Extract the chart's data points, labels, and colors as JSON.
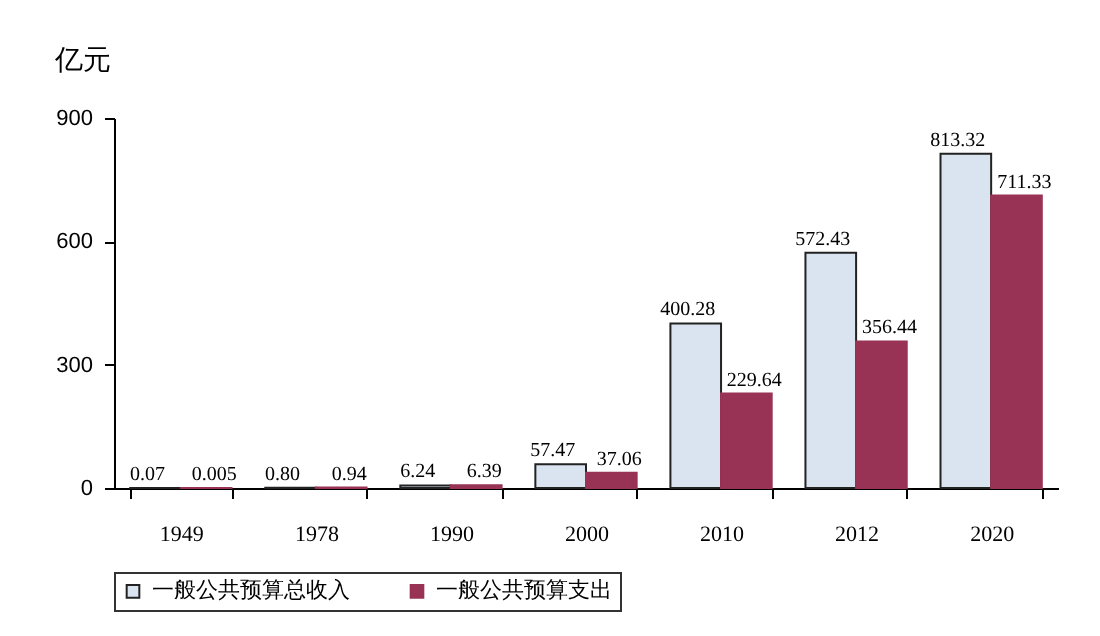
{
  "chart_data": {
    "type": "bar",
    "ylabel": "亿元",
    "categories": [
      "1949",
      "1978",
      "1990",
      "2000",
      "2010",
      "2012",
      "2020"
    ],
    "series": [
      {
        "name": "一般公共预算总收入",
        "color": "#dae3f0",
        "values": [
          0.07,
          0.8,
          6.24,
          57.47,
          400.28,
          572.43,
          813.32
        ],
        "value_labels": [
          "0.07",
          "0.80",
          "6.24",
          "57.47",
          "400.28",
          "572.43",
          "813.32"
        ]
      },
      {
        "name": "一般公共预算支出",
        "color": "#993355",
        "values": [
          0.005,
          0.94,
          6.39,
          37.06,
          229.64,
          356.44,
          711.33
        ],
        "value_labels": [
          "0.005",
          "0.94",
          "6.39",
          "37.06",
          "229.64",
          "356.44",
          "711.33"
        ]
      }
    ],
    "ylim": [
      0,
      900
    ],
    "yticks": [
      0,
      300,
      600,
      900
    ],
    "grid": false,
    "legend": "bottom"
  }
}
